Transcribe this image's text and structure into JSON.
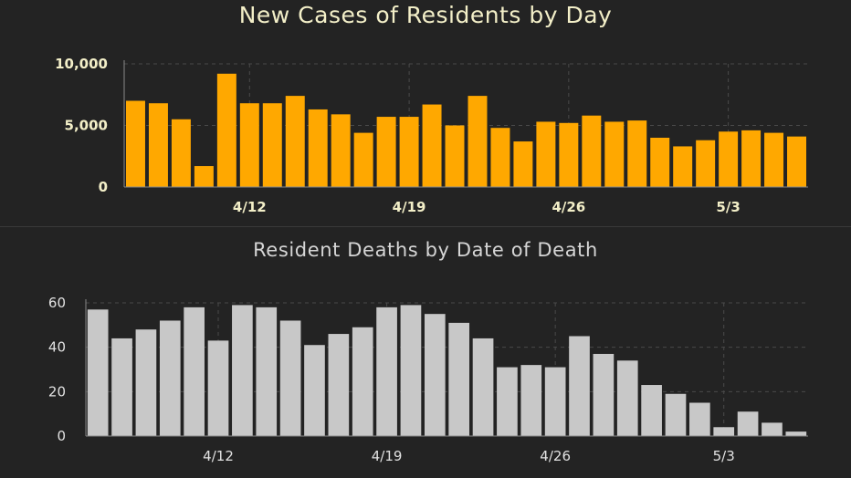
{
  "chart_data": [
    {
      "type": "bar",
      "title": "New Cases of Residents by Day",
      "bar_color": "#FFA800",
      "ylim": [
        0,
        10000
      ],
      "y_ticks": [
        {
          "value": 0,
          "label": "0"
        },
        {
          "value": 5000,
          "label": "5,000"
        },
        {
          "value": 10000,
          "label": "10,000"
        }
      ],
      "x_ticks": [
        {
          "index": 5,
          "label": "4/12"
        },
        {
          "index": 12,
          "label": "4/19"
        },
        {
          "index": 19,
          "label": "4/26"
        },
        {
          "index": 26,
          "label": "5/3"
        }
      ],
      "grid": true,
      "values": [
        7000,
        6800,
        5500,
        1700,
        9200,
        6800,
        6800,
        7400,
        6300,
        5900,
        4400,
        5700,
        5700,
        6700,
        5000,
        7400,
        4800,
        3700,
        5300,
        5200,
        5800,
        5300,
        5400,
        4000,
        3300,
        3800,
        4500,
        4600,
        4400,
        4100
      ]
    },
    {
      "type": "bar",
      "title": "Resident Deaths by Date of Death",
      "bar_color": "#C8C8C8",
      "ylim": [
        0,
        60
      ],
      "y_ticks": [
        {
          "value": 0,
          "label": "0"
        },
        {
          "value": 20,
          "label": "20"
        },
        {
          "value": 40,
          "label": "40"
        },
        {
          "value": 60,
          "label": "60"
        }
      ],
      "x_ticks": [
        {
          "index": 5,
          "label": "4/12"
        },
        {
          "index": 12,
          "label": "4/19"
        },
        {
          "index": 19,
          "label": "4/26"
        },
        {
          "index": 26,
          "label": "5/3"
        }
      ],
      "grid": true,
      "values": [
        57,
        44,
        48,
        52,
        58,
        43,
        59,
        58,
        52,
        41,
        46,
        49,
        58,
        59,
        55,
        51,
        44,
        31,
        32,
        31,
        45,
        37,
        34,
        23,
        19,
        15,
        4,
        11,
        6,
        2
      ]
    }
  ]
}
